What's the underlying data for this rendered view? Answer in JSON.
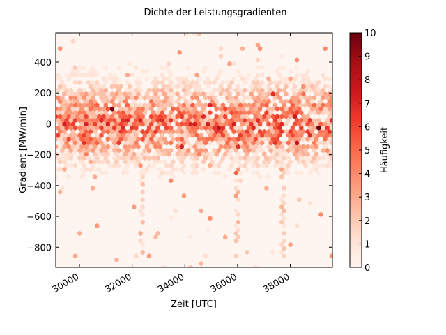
{
  "chart_data": {
    "type": "heatmap",
    "subtype": "hexbin",
    "title": "Dichte der Leistungsgradienten",
    "xlabel": "Zeit [UTC]",
    "ylabel": "Gradient [MW/min]",
    "xlim": [
      29100,
      39600
    ],
    "ylim": [
      -930,
      590
    ],
    "xticks": [
      30000,
      32000,
      34000,
      36000,
      38000
    ],
    "xtick_labels": [
      "30000",
      "32000",
      "34000",
      "36000",
      "38000"
    ],
    "xtick_rotation": 30,
    "yticks": [
      -800,
      -600,
      -400,
      -200,
      0,
      200,
      400
    ],
    "ytick_labels": [
      "−800",
      "−600",
      "−400",
      "−200",
      "0",
      "200",
      "400"
    ],
    "grid": false,
    "colormap": "Reds",
    "background_color": "#fff5f0",
    "colorbar": {
      "label": "Häufigkeit",
      "range": [
        0,
        10
      ],
      "ticks": [
        0,
        1,
        2,
        3,
        4,
        5,
        6,
        7,
        8,
        9,
        10
      ],
      "tick_labels": [
        "0",
        "1",
        "2",
        "3",
        "4",
        "5",
        "6",
        "7",
        "8",
        "9",
        "10"
      ]
    },
    "density_profile": {
      "y_values": [
        -900,
        -800,
        -700,
        -600,
        -500,
        -400,
        -300,
        -200,
        -100,
        0,
        100,
        200,
        300,
        400,
        500
      ],
      "typical_count": [
        0,
        0,
        0,
        0,
        0,
        0.2,
        0.8,
        2.0,
        4.0,
        5.0,
        4.0,
        2.2,
        0.8,
        0.3,
        0.1
      ]
    },
    "vertical_streaks_x": [
      32350,
      36000,
      37700
    ]
  }
}
